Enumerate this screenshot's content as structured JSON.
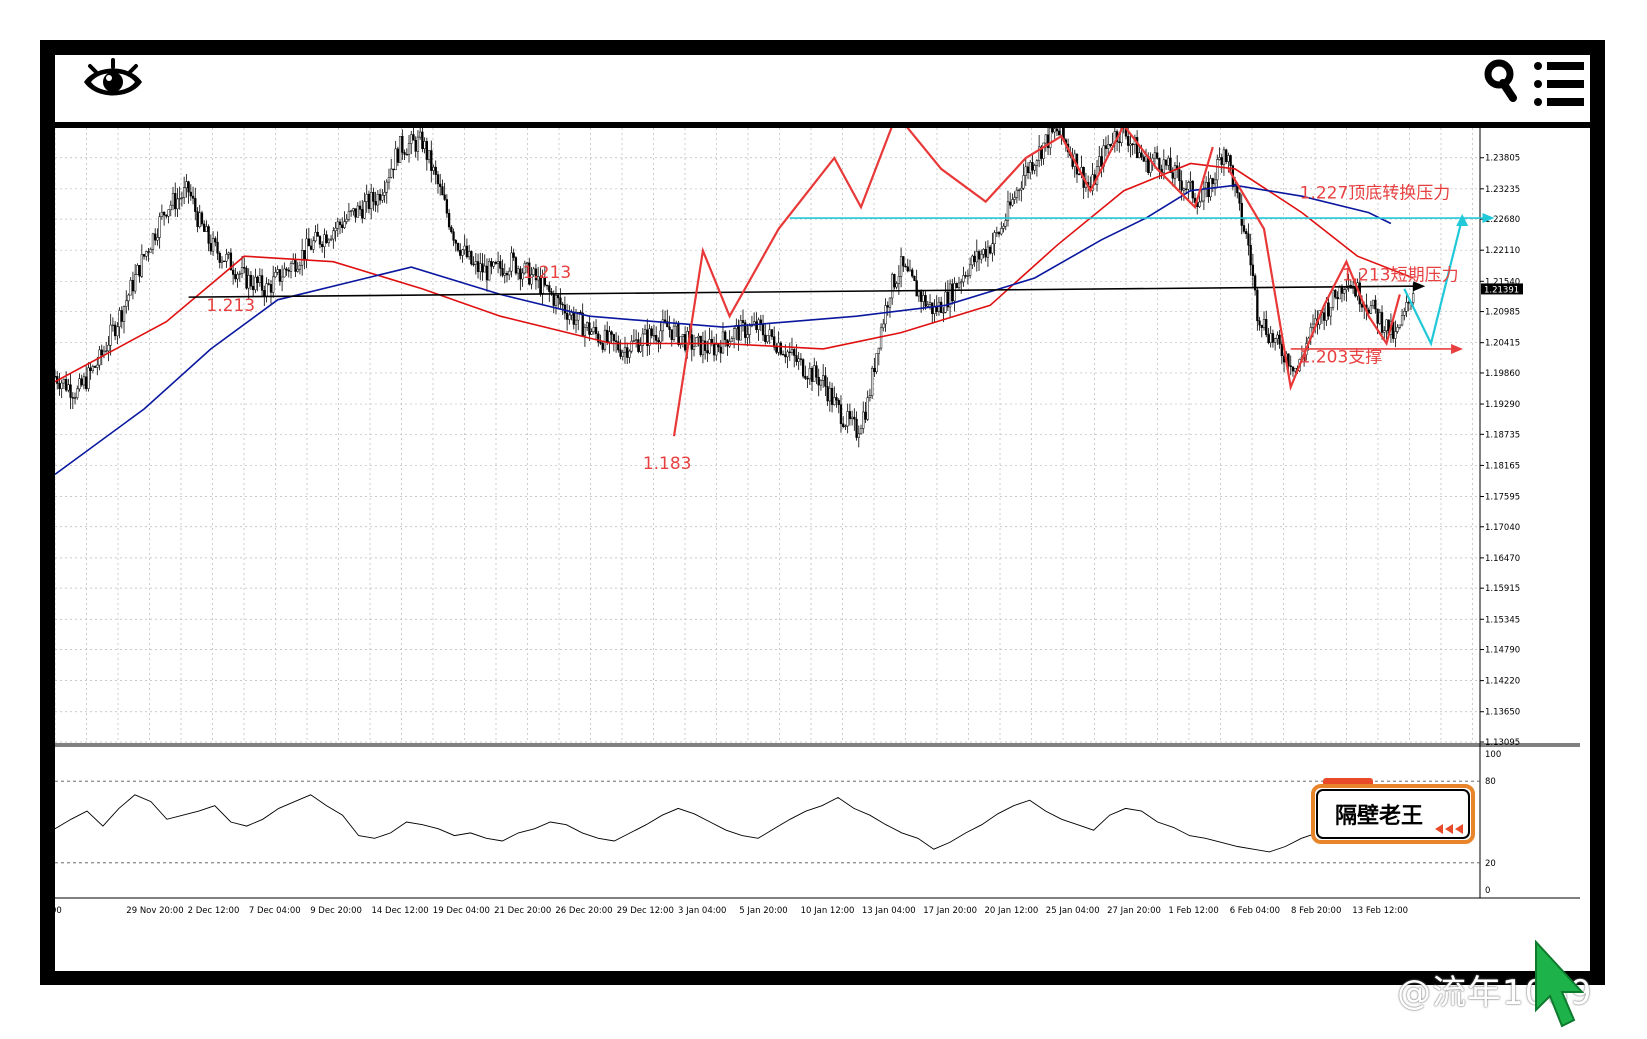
{
  "header": {
    "eye_icon": "eye-icon",
    "search_icon": "search-icon",
    "menu_icon": "menu-icon"
  },
  "chart_data": {
    "type": "candlestick",
    "title": "",
    "price_axis": {
      "ticks": [
        "1.23805",
        "1.23235",
        "1.22680",
        "1.22110",
        "1.21540",
        "1.20985",
        "1.20415",
        "1.19860",
        "1.19290",
        "1.18735",
        "1.18165",
        "1.17595",
        "1.17040",
        "1.16470",
        "1.15915",
        "1.15345",
        "1.14790",
        "1.14220",
        "1.13650",
        "1.13095"
      ],
      "current_price": "1.21391",
      "ylim": [
        1.13095,
        1.2435
      ]
    },
    "time_axis": {
      "ticks": [
        "00",
        "29 Nov 20:00",
        "2 Dec 12:00",
        "7 Dec 04:00",
        "9 Dec 20:00",
        "14 Dec 12:00",
        "19 Dec 04:00",
        "21 Dec 20:00",
        "26 Dec 20:00",
        "29 Dec 12:00",
        "3 Jan 04:00",
        "5 Jan 20:00",
        "10 Jan 12:00",
        "13 Jan 04:00",
        "17 Jan 20:00",
        "20 Jan 12:00",
        "25 Jan 04:00",
        "27 Jan 20:00",
        "1 Feb 12:00",
        "6 Feb 04:00",
        "8 Feb 20:00",
        "13 Feb 12:00"
      ]
    },
    "close_series": [
      [
        0,
        1.198
      ],
      [
        10,
        1.195
      ],
      [
        20,
        1.201
      ],
      [
        30,
        1.21
      ],
      [
        40,
        1.22
      ],
      [
        50,
        1.229
      ],
      [
        60,
        1.232
      ],
      [
        65,
        1.226
      ],
      [
        70,
        1.222
      ],
      [
        78,
        1.219
      ],
      [
        85,
        1.216
      ],
      [
        95,
        1.214
      ],
      [
        105,
        1.218
      ],
      [
        115,
        1.222
      ],
      [
        125,
        1.225
      ],
      [
        135,
        1.228
      ],
      [
        145,
        1.231
      ],
      [
        155,
        1.24
      ],
      [
        165,
        1.241
      ],
      [
        172,
        1.233
      ],
      [
        180,
        1.223
      ],
      [
        188,
        1.218
      ],
      [
        196,
        1.217
      ],
      [
        205,
        1.219
      ],
      [
        215,
        1.216
      ],
      [
        225,
        1.212
      ],
      [
        235,
        1.208
      ],
      [
        245,
        1.205
      ],
      [
        255,
        1.203
      ],
      [
        265,
        1.205
      ],
      [
        275,
        1.207
      ],
      [
        285,
        1.204
      ],
      [
        295,
        1.203
      ],
      [
        305,
        1.206
      ],
      [
        315,
        1.207
      ],
      [
        325,
        1.204
      ],
      [
        335,
        1.2
      ],
      [
        345,
        1.197
      ],
      [
        350,
        1.193
      ],
      [
        355,
        1.19
      ],
      [
        360,
        1.188
      ],
      [
        365,
        1.193
      ],
      [
        370,
        1.205
      ],
      [
        375,
        1.214
      ],
      [
        380,
        1.218
      ],
      [
        385,
        1.215
      ],
      [
        390,
        1.212
      ],
      [
        395,
        1.21
      ],
      [
        400,
        1.212
      ],
      [
        405,
        1.215
      ],
      [
        410,
        1.218
      ],
      [
        415,
        1.22
      ],
      [
        420,
        1.222
      ],
      [
        425,
        1.225
      ],
      [
        430,
        1.23
      ],
      [
        435,
        1.235
      ],
      [
        440,
        1.238
      ],
      [
        445,
        1.241
      ],
      [
        450,
        1.243
      ],
      [
        455,
        1.24
      ],
      [
        460,
        1.236
      ],
      [
        465,
        1.232
      ],
      [
        470,
        1.238
      ],
      [
        475,
        1.242
      ],
      [
        480,
        1.243
      ],
      [
        485,
        1.24
      ],
      [
        490,
        1.237
      ],
      [
        495,
        1.238
      ],
      [
        500,
        1.236
      ],
      [
        505,
        1.234
      ],
      [
        510,
        1.232
      ],
      [
        515,
        1.23
      ],
      [
        520,
        1.234
      ],
      [
        525,
        1.24
      ],
      [
        528,
        1.236
      ],
      [
        532,
        1.228
      ],
      [
        536,
        1.222
      ],
      [
        540,
        1.21
      ],
      [
        545,
        1.206
      ],
      [
        550,
        1.203
      ],
      [
        555,
        1.201
      ],
      [
        558,
        1.199
      ],
      [
        562,
        1.204
      ],
      [
        568,
        1.209
      ],
      [
        574,
        1.212
      ],
      [
        580,
        1.216
      ],
      [
        586,
        1.213
      ],
      [
        592,
        1.21
      ],
      [
        598,
        1.207
      ],
      [
        602,
        1.205
      ],
      [
        606,
        1.209
      ],
      [
        610,
        1.214
      ]
    ],
    "moving_averages": [
      {
        "name": "red",
        "color": "#e01010",
        "points": [
          [
            0,
            1.197
          ],
          [
            50,
            1.208
          ],
          [
            85,
            1.22
          ],
          [
            125,
            1.219
          ],
          [
            165,
            1.214
          ],
          [
            200,
            1.209
          ],
          [
            250,
            1.204
          ],
          [
            300,
            1.204
          ],
          [
            345,
            1.203
          ],
          [
            380,
            1.206
          ],
          [
            420,
            1.211
          ],
          [
            450,
            1.222
          ],
          [
            480,
            1.232
          ],
          [
            510,
            1.237
          ],
          [
            530,
            1.236
          ],
          [
            560,
            1.228
          ],
          [
            585,
            1.22
          ],
          [
            610,
            1.216
          ]
        ]
      },
      {
        "name": "blue",
        "color": "#0a18a0",
        "points": [
          [
            0,
            1.18
          ],
          [
            40,
            1.192
          ],
          [
            70,
            1.203
          ],
          [
            100,
            1.212
          ],
          [
            140,
            1.216
          ],
          [
            160,
            1.218
          ],
          [
            200,
            1.213
          ],
          [
            240,
            1.209
          ],
          [
            270,
            1.208
          ],
          [
            300,
            1.207
          ],
          [
            330,
            1.208
          ],
          [
            360,
            1.209
          ],
          [
            400,
            1.211
          ],
          [
            440,
            1.216
          ],
          [
            470,
            1.223
          ],
          [
            490,
            1.227
          ],
          [
            510,
            1.232
          ],
          [
            530,
            1.233
          ],
          [
            560,
            1.231
          ],
          [
            590,
            1.228
          ],
          [
            600,
            1.226
          ]
        ]
      }
    ],
    "horizontal_levels": [
      {
        "price": 1.2135,
        "color": "#000000",
        "label": ""
      },
      {
        "price": 1.227,
        "color": "#20c8d8",
        "label": "1.227顶底转换压力"
      },
      {
        "price": 1.203,
        "color": "#e84040",
        "label": "1.203支撑"
      }
    ],
    "annotations": [
      {
        "text": "1.213",
        "x": 68,
        "y": 1.21,
        "color": "#e84040"
      },
      {
        "text": "1.213",
        "x": 210,
        "y": 1.216,
        "color": "#e84040"
      },
      {
        "text": "1.183",
        "x": 264,
        "y": 1.181,
        "color": "#e84040"
      },
      {
        "text": "1.213短期压力",
        "x": 578,
        "y": 1.2155,
        "color": "#e84040"
      },
      {
        "text": "1.227顶底转换压力",
        "x": 559,
        "y": 1.2306,
        "color": "#e84040"
      },
      {
        "text": "1.203支撑",
        "x": 559,
        "y": 1.2005,
        "color": "#e84040"
      }
    ],
    "zigzag": [
      [
        278,
        1.187
      ],
      [
        291,
        1.221
      ],
      [
        303,
        1.209
      ],
      [
        325,
        1.225
      ],
      [
        350,
        1.238
      ],
      [
        362,
        1.229
      ],
      [
        378,
        1.246
      ],
      [
        398,
        1.236
      ],
      [
        418,
        1.23
      ],
      [
        436,
        1.238
      ],
      [
        452,
        1.242
      ],
      [
        465,
        1.232
      ],
      [
        480,
        1.244
      ],
      [
        495,
        1.236
      ],
      [
        512,
        1.229
      ],
      [
        520,
        1.24
      ]
    ],
    "zigzag_right": [
      [
        527,
        1.236
      ],
      [
        543,
        1.225
      ],
      [
        555,
        1.196
      ],
      [
        570,
        1.211
      ],
      [
        580,
        1.219
      ],
      [
        590,
        1.209
      ],
      [
        598,
        1.204
      ],
      [
        604,
        1.213
      ]
    ],
    "projection": [
      [
        606,
        1.214
      ],
      [
        618,
        1.204
      ],
      [
        632,
        1.227
      ]
    ],
    "rsi": {
      "levels": [
        "100",
        "80",
        "20",
        "0"
      ],
      "values": [
        45,
        52,
        58,
        47,
        60,
        70,
        65,
        52,
        55,
        58,
        62,
        50,
        47,
        52,
        60,
        65,
        70,
        62,
        55,
        40,
        38,
        42,
        50,
        48,
        45,
        40,
        42,
        38,
        36,
        42,
        45,
        50,
        48,
        42,
        38,
        36,
        42,
        48,
        55,
        60,
        56,
        50,
        44,
        40,
        38,
        45,
        52,
        58,
        62,
        68,
        60,
        55,
        48,
        42,
        38,
        30,
        35,
        42,
        48,
        56,
        62,
        66,
        58,
        52,
        48,
        44,
        55,
        60,
        58,
        50,
        46,
        40,
        38,
        35,
        32,
        30,
        28,
        32,
        38,
        42,
        48,
        52,
        50,
        46,
        44,
        48
      ]
    },
    "logo_text": "隔壁老王"
  },
  "watermark": "@流年1089"
}
